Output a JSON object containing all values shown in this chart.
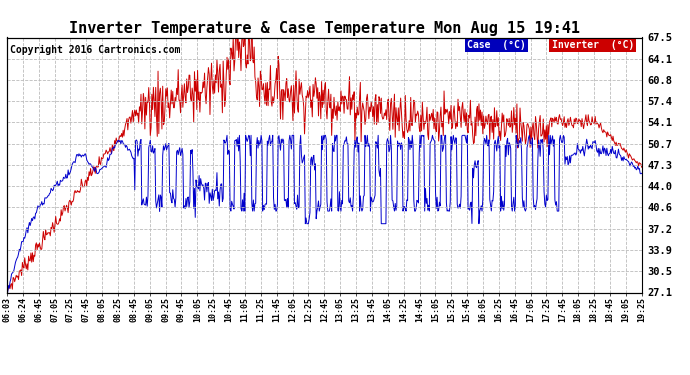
{
  "title": "Inverter Temperature & Case Temperature Mon Aug 15 19:41",
  "copyright": "Copyright 2016 Cartronics.com",
  "ylabel_right_ticks": [
    27.1,
    30.5,
    33.9,
    37.2,
    40.6,
    44.0,
    47.3,
    50.7,
    54.1,
    57.4,
    60.8,
    64.1,
    67.5
  ],
  "ymin": 27.1,
  "ymax": 67.5,
  "case_color": "#0000cc",
  "inverter_color": "#cc0000",
  "legend_case_bg": "#0000bb",
  "legend_inverter_bg": "#cc0000",
  "background_color": "#ffffff",
  "grid_color": "#bbbbbb",
  "title_fontsize": 11,
  "copyright_fontsize": 7,
  "x_labels": [
    "06:03",
    "06:24",
    "06:45",
    "07:05",
    "07:25",
    "07:45",
    "08:05",
    "08:25",
    "08:45",
    "09:05",
    "09:25",
    "09:45",
    "10:05",
    "10:25",
    "10:45",
    "11:05",
    "11:25",
    "11:45",
    "12:05",
    "12:25",
    "12:45",
    "13:05",
    "13:25",
    "13:45",
    "14:05",
    "14:25",
    "14:45",
    "15:05",
    "15:25",
    "15:45",
    "16:05",
    "16:25",
    "16:45",
    "17:05",
    "17:25",
    "17:45",
    "18:05",
    "18:25",
    "18:45",
    "19:05",
    "19:25"
  ]
}
